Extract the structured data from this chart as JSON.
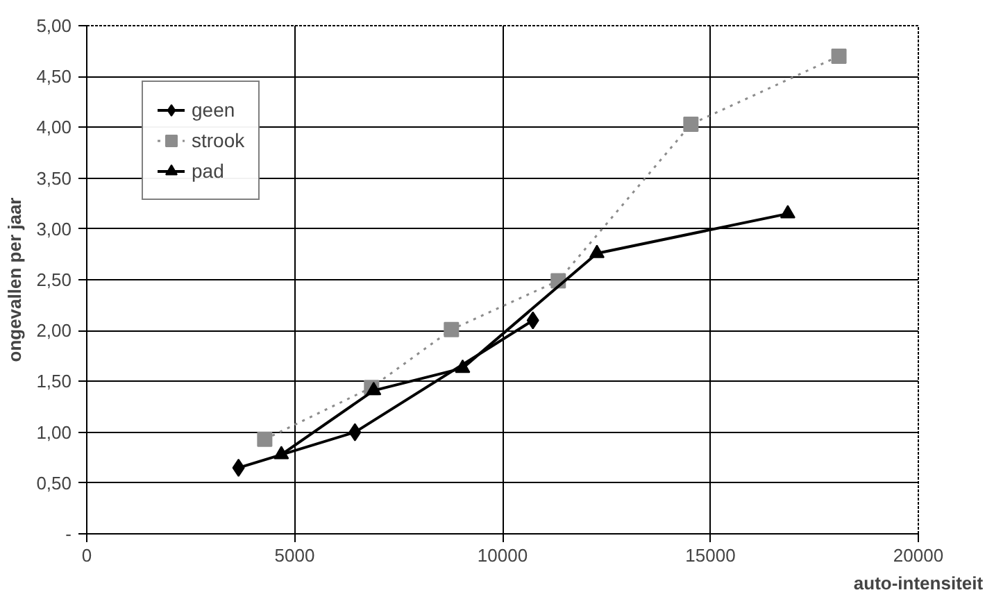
{
  "chart_data": {
    "type": "line",
    "xlabel": "auto-intensiteit",
    "ylabel": "ongevallen per jaar",
    "xlim": [
      0,
      20000
    ],
    "xticks": [
      0,
      5000,
      10000,
      15000,
      20000
    ],
    "ylim": [
      0,
      5
    ],
    "yticks": [
      {
        "value": 0,
        "label": "-"
      },
      {
        "value": 0.5,
        "label": "0,50"
      },
      {
        "value": 1,
        "label": "1,00"
      },
      {
        "value": 1.5,
        "label": "1,50"
      },
      {
        "value": 2,
        "label": "2,00"
      },
      {
        "value": 2.5,
        "label": "2,50"
      },
      {
        "value": 3,
        "label": "3,00"
      },
      {
        "value": 3.5,
        "label": "3,50"
      },
      {
        "value": 4,
        "label": "4,00"
      },
      {
        "value": 4.5,
        "label": "4,50"
      },
      {
        "value": 5,
        "label": "5,00"
      }
    ],
    "grid": true,
    "legend": "top left",
    "series": [
      {
        "name": "geen",
        "color": "#000000",
        "marker": "diamond",
        "line_style": "solid",
        "x": [
          3650,
          6450,
          10730
        ],
        "values": [
          0.65,
          1.0,
          2.1
        ]
      },
      {
        "name": "strook",
        "color": "#8c8c8c",
        "marker": "square",
        "line_style": "dotted",
        "x": [
          4280,
          6850,
          8770,
          11340,
          14530,
          18090
        ],
        "values": [
          0.93,
          1.44,
          2.01,
          2.49,
          4.03,
          4.7
        ]
      },
      {
        "name": "pad",
        "color": "#000000",
        "marker": "triangle",
        "line_style": "solid",
        "x": [
          4680,
          6900,
          9040,
          12270,
          16860
        ],
        "values": [
          0.78,
          1.41,
          1.63,
          2.76,
          3.15
        ]
      }
    ]
  }
}
